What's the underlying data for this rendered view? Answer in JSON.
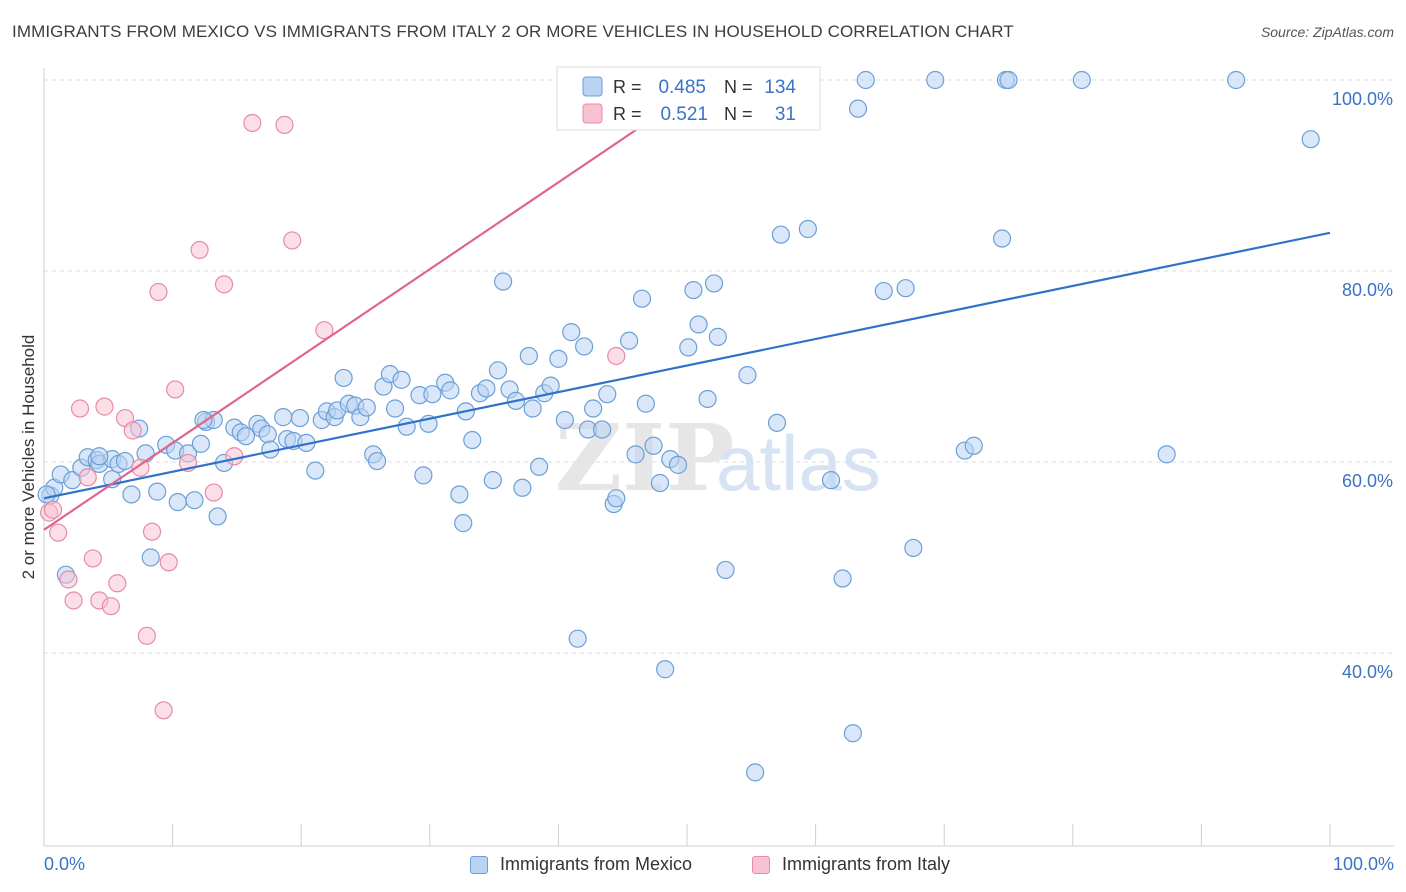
{
  "title": "IMMIGRANTS FROM MEXICO VS IMMIGRANTS FROM ITALY 2 OR MORE VEHICLES IN HOUSEHOLD CORRELATION CHART",
  "source": "Source: ZipAtlas.com",
  "watermark": {
    "zip": "ZIP",
    "atlas": "atlas"
  },
  "colors": {
    "mexico_fill": "#b9d3f3",
    "mexico_stroke": "#6c9fd8",
    "mexico_line": "#2f72c8",
    "italy_fill": "#f7c2d1",
    "italy_stroke": "#e68ca8",
    "italy_line": "#e0658c",
    "axis_label": "#3b72c4",
    "grid": "#dddddd"
  },
  "legend_top": {
    "rows": [
      {
        "r_label": "R =",
        "r_value": "0.485",
        "n_label": "N =",
        "n_value": "134"
      },
      {
        "r_label": "R =",
        "r_value": "0.521",
        "n_label": "N =",
        "n_value": "31"
      }
    ]
  },
  "legend_bottom": [
    {
      "label": "Immigrants from Mexico"
    },
    {
      "label": "Immigrants from Italy"
    }
  ],
  "chart_data": {
    "type": "scatter",
    "title": "IMMIGRANTS FROM MEXICO VS IMMIGRANTS FROM ITALY 2 OR MORE VEHICLES IN HOUSEHOLD CORRELATION CHART",
    "xlabel": "",
    "ylabel": "2 or more Vehicles in Household",
    "xlim": [
      0,
      100
    ],
    "ylim": [
      20,
      102
    ],
    "x_tick_labels": [
      "0.0%",
      "100.0%"
    ],
    "y_tick_values": [
      40,
      60,
      80,
      100
    ],
    "y_tick_labels": [
      "40.0%",
      "60.0%",
      "80.0%",
      "100.0%"
    ],
    "grid": true,
    "legend_position": "top-center",
    "series": [
      {
        "name": "Immigrants from Mexico",
        "R": 0.485,
        "N": 134,
        "trend": {
          "x": [
            0,
            100
          ],
          "y": [
            56.2,
            84.0
          ]
        },
        "points": [
          [
            0.5,
            56.5
          ],
          [
            0.8,
            57.3
          ],
          [
            1.3,
            58.7
          ],
          [
            1.7,
            48.2
          ],
          [
            2.2,
            58.1
          ],
          [
            2.9,
            59.4
          ],
          [
            3.4,
            60.5
          ],
          [
            4.1,
            60.2
          ],
          [
            4.3,
            59.8
          ],
          [
            5.3,
            58.2
          ],
          [
            5.3,
            60.3
          ],
          [
            5.8,
            59.8
          ],
          [
            6.3,
            60.1
          ],
          [
            6.8,
            56.6
          ],
          [
            7.4,
            63.5
          ],
          [
            7.9,
            60.9
          ],
          [
            8.3,
            50.0
          ],
          [
            8.8,
            56.9
          ],
          [
            9.5,
            61.8
          ],
          [
            10.2,
            61.2
          ],
          [
            10.4,
            55.8
          ],
          [
            11.2,
            60.9
          ],
          [
            11.7,
            56.0
          ],
          [
            12.2,
            61.9
          ],
          [
            12.6,
            64.2
          ],
          [
            13.2,
            64.4
          ],
          [
            13.5,
            54.3
          ],
          [
            14.0,
            59.9
          ],
          [
            14.8,
            63.6
          ],
          [
            15.3,
            63.1
          ],
          [
            15.7,
            62.7
          ],
          [
            16.6,
            64.0
          ],
          [
            16.9,
            63.5
          ],
          [
            17.4,
            62.9
          ],
          [
            17.6,
            61.3
          ],
          [
            18.6,
            64.7
          ],
          [
            18.9,
            62.4
          ],
          [
            19.4,
            62.2
          ],
          [
            19.9,
            64.6
          ],
          [
            20.4,
            62.0
          ],
          [
            21.1,
            59.1
          ],
          [
            21.6,
            64.4
          ],
          [
            22.0,
            65.3
          ],
          [
            22.6,
            64.7
          ],
          [
            22.8,
            65.4
          ],
          [
            23.3,
            68.8
          ],
          [
            23.7,
            66.1
          ],
          [
            24.2,
            65.9
          ],
          [
            24.6,
            64.7
          ],
          [
            25.1,
            65.7
          ],
          [
            25.6,
            60.8
          ],
          [
            25.9,
            60.1
          ],
          [
            26.4,
            67.9
          ],
          [
            26.9,
            69.2
          ],
          [
            27.3,
            65.6
          ],
          [
            27.8,
            68.6
          ],
          [
            28.2,
            63.7
          ],
          [
            29.2,
            67.0
          ],
          [
            29.5,
            58.6
          ],
          [
            29.9,
            64.0
          ],
          [
            30.2,
            67.1
          ],
          [
            31.2,
            68.3
          ],
          [
            31.6,
            67.5
          ],
          [
            32.3,
            56.6
          ],
          [
            32.6,
            53.6
          ],
          [
            32.8,
            65.3
          ],
          [
            33.3,
            62.3
          ],
          [
            33.9,
            67.2
          ],
          [
            34.4,
            67.7
          ],
          [
            34.9,
            58.1
          ],
          [
            35.3,
            69.6
          ],
          [
            35.7,
            78.9
          ],
          [
            36.2,
            67.6
          ],
          [
            36.7,
            66.4
          ],
          [
            37.2,
            57.3
          ],
          [
            37.7,
            71.1
          ],
          [
            38.0,
            65.6
          ],
          [
            38.5,
            59.5
          ],
          [
            38.9,
            67.2
          ],
          [
            39.4,
            68.0
          ],
          [
            40.0,
            70.8
          ],
          [
            40.5,
            64.4
          ],
          [
            41.0,
            73.6
          ],
          [
            41.5,
            41.5
          ],
          [
            42.0,
            72.1
          ],
          [
            42.3,
            63.4
          ],
          [
            42.7,
            65.6
          ],
          [
            43.4,
            63.4
          ],
          [
            43.8,
            67.1
          ],
          [
            44.3,
            55.6
          ],
          [
            44.5,
            56.2
          ],
          [
            45.5,
            72.7
          ],
          [
            46.0,
            60.8
          ],
          [
            46.5,
            77.1
          ],
          [
            46.8,
            66.1
          ],
          [
            47.4,
            61.7
          ],
          [
            47.9,
            57.8
          ],
          [
            48.3,
            38.3
          ],
          [
            48.7,
            60.3
          ],
          [
            49.3,
            59.7
          ],
          [
            50.1,
            72.0
          ],
          [
            50.5,
            78.0
          ],
          [
            50.9,
            74.4
          ],
          [
            51.6,
            66.6
          ],
          [
            52.1,
            78.7
          ],
          [
            52.4,
            73.1
          ],
          [
            53.0,
            48.7
          ],
          [
            54.7,
            69.1
          ],
          [
            55.3,
            27.5
          ],
          [
            57.0,
            64.1
          ],
          [
            57.3,
            83.8
          ],
          [
            58.7,
            100.0
          ],
          [
            59.4,
            84.4
          ],
          [
            61.2,
            58.1
          ],
          [
            62.1,
            47.8
          ],
          [
            62.9,
            31.6
          ],
          [
            63.3,
            97.0
          ],
          [
            63.9,
            100.0
          ],
          [
            65.3,
            77.9
          ],
          [
            67.0,
            78.2
          ],
          [
            67.6,
            51.0
          ],
          [
            69.3,
            100.0
          ],
          [
            71.6,
            61.2
          ],
          [
            72.3,
            61.7
          ],
          [
            74.5,
            83.4
          ],
          [
            74.8,
            100.0
          ],
          [
            75.0,
            100.0
          ],
          [
            80.7,
            100.0
          ],
          [
            87.3,
            60.8
          ],
          [
            92.7,
            100.0
          ],
          [
            98.5,
            93.8
          ],
          [
            0.2,
            56.6
          ],
          [
            12.4,
            64.4
          ],
          [
            4.3,
            60.6
          ]
        ]
      },
      {
        "name": "Immigrants from Italy",
        "R": 0.521,
        "N": 31,
        "trend": {
          "x": [
            0,
            48.7
          ],
          "y": [
            52.9,
            97.2
          ]
        },
        "points": [
          [
            0.4,
            54.7
          ],
          [
            0.7,
            55.0
          ],
          [
            1.1,
            52.6
          ],
          [
            1.9,
            47.7
          ],
          [
            2.3,
            45.5
          ],
          [
            2.8,
            65.6
          ],
          [
            3.4,
            58.4
          ],
          [
            3.8,
            49.9
          ],
          [
            4.3,
            45.5
          ],
          [
            4.7,
            65.8
          ],
          [
            5.2,
            44.9
          ],
          [
            5.7,
            47.3
          ],
          [
            6.3,
            64.6
          ],
          [
            6.9,
            63.3
          ],
          [
            7.5,
            59.4
          ],
          [
            8.0,
            41.8
          ],
          [
            8.4,
            52.7
          ],
          [
            8.9,
            77.8
          ],
          [
            9.3,
            34.0
          ],
          [
            9.7,
            49.5
          ],
          [
            10.2,
            67.6
          ],
          [
            11.2,
            59.9
          ],
          [
            12.1,
            82.2
          ],
          [
            13.2,
            56.8
          ],
          [
            14.0,
            78.6
          ],
          [
            14.8,
            60.6
          ],
          [
            16.2,
            95.5
          ],
          [
            18.7,
            95.3
          ],
          [
            19.3,
            83.2
          ],
          [
            21.8,
            73.8
          ],
          [
            44.5,
            71.1
          ]
        ]
      }
    ]
  }
}
